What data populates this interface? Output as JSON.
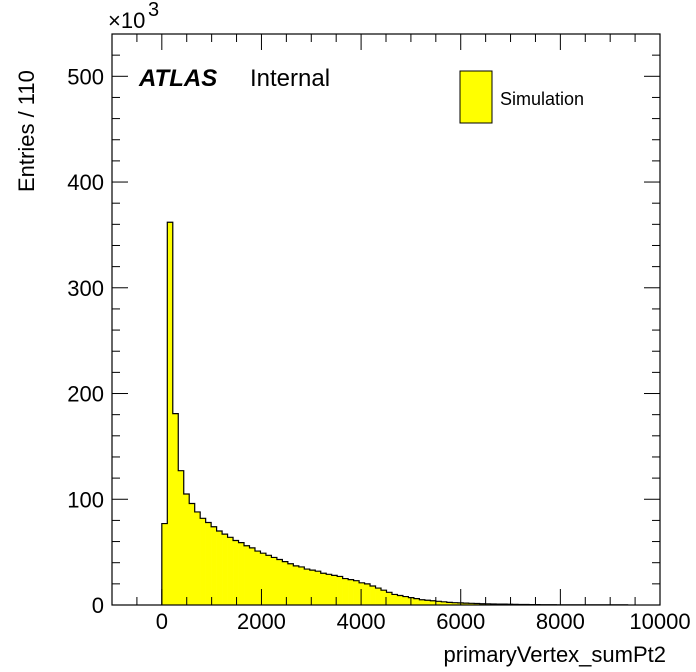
{
  "chart_data": {
    "type": "histogram",
    "xlabel": "primaryVertex_sumPt2",
    "ylabel": "Entries / 110",
    "y_multiplier": "×10",
    "y_multiplier_exponent": "3",
    "xlim": [
      -1000,
      10000
    ],
    "ylim": [
      0,
      540
    ],
    "x_ticks": [
      0,
      2000,
      4000,
      6000,
      8000,
      10000
    ],
    "x_tick_labels": [
      "0",
      "2000",
      "4000",
      "6000",
      "8000",
      "10000"
    ],
    "y_ticks": [
      0,
      100,
      200,
      300,
      400,
      500
    ],
    "y_tick_labels": [
      "0",
      "100",
      "200",
      "300",
      "400",
      "500"
    ],
    "bin_start": 0,
    "bin_width": 110,
    "values": [
      77,
      362,
      181,
      127,
      105,
      96,
      88,
      82,
      78,
      74,
      70,
      67,
      64,
      61,
      59,
      56,
      54,
      51,
      49,
      47,
      45,
      43,
      41,
      39,
      37,
      36,
      34,
      33,
      32,
      30,
      29,
      28,
      27,
      25,
      24,
      23,
      21,
      20,
      18,
      16,
      14,
      12,
      10,
      9,
      8,
      7,
      6,
      5,
      4.5,
      4,
      3.5,
      3,
      2.5,
      2.2,
      2,
      1.8,
      1.6,
      1.4,
      1.2,
      1.1,
      1.0,
      0.9,
      0.8,
      0.7,
      0.6,
      0.5,
      0.5,
      0.4,
      0.4,
      0.3,
      0.3,
      0.3,
      0.2,
      0.2,
      0.2,
      0.2,
      0.1,
      0.1,
      0.1,
      0.1,
      0.1,
      0.1,
      0.1,
      0.1,
      0.1
    ],
    "series": [
      {
        "name": "Simulation",
        "color": "#ffff00"
      }
    ],
    "legend_placement": "top-right",
    "grid": false
  },
  "annotations": {
    "atlas": "ATLAS",
    "internal": "Internal"
  },
  "colors": {
    "fill": "#ffff00",
    "line": "#000000"
  }
}
